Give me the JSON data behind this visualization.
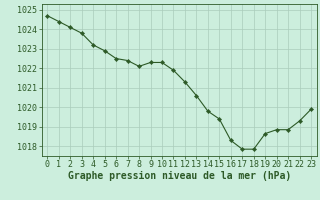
{
  "x": [
    0,
    1,
    2,
    3,
    4,
    5,
    6,
    7,
    8,
    9,
    10,
    11,
    12,
    13,
    14,
    15,
    16,
    17,
    18,
    19,
    20,
    21,
    22,
    23
  ],
  "y": [
    1024.7,
    1024.4,
    1024.1,
    1023.8,
    1023.2,
    1022.9,
    1022.5,
    1022.4,
    1022.1,
    1022.3,
    1022.3,
    1021.9,
    1021.3,
    1020.6,
    1019.8,
    1019.4,
    1018.3,
    1017.85,
    1017.85,
    1018.65,
    1018.85,
    1018.85,
    1019.3,
    1019.9
  ],
  "line_color": "#2d5a27",
  "marker_color": "#2d5a27",
  "bg_color": "#cceedd",
  "grid_color": "#aaccbb",
  "xlabel": "Graphe pression niveau de la mer (hPa)",
  "ylim_min": 1017.5,
  "ylim_max": 1025.3,
  "yticks": [
    1018,
    1019,
    1020,
    1021,
    1022,
    1023,
    1024,
    1025
  ],
  "xticks": [
    0,
    1,
    2,
    3,
    4,
    5,
    6,
    7,
    8,
    9,
    10,
    11,
    12,
    13,
    14,
    15,
    16,
    17,
    18,
    19,
    20,
    21,
    22,
    23
  ],
  "title_color": "#2d5a27",
  "xlabel_fontsize": 7.0,
  "tick_fontsize": 6.0
}
